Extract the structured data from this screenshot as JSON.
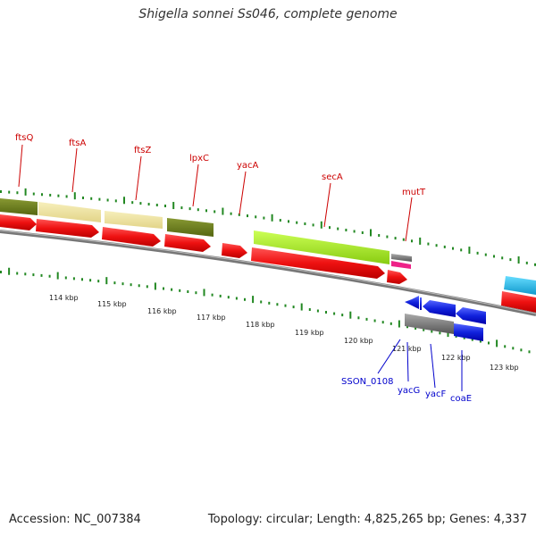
{
  "title": "Shigella sonnei Ss046, complete genome",
  "footer": {
    "accession": "Accession: NC_007384",
    "summary": "Topology: circular; Length: 4,825,265 bp; Genes: 4,337"
  },
  "scale_labels": [
    "114 kbp",
    "115 kbp",
    "116 kbp",
    "117 kbp",
    "118 kbp",
    "119 kbp",
    "120 kbp",
    "121 kbp",
    "122 kbp",
    "123 kbp"
  ],
  "upper_gene_labels": [
    "ftsQ",
    "ftsA",
    "ftsZ",
    "lpxC",
    "yacA",
    "secA",
    "mutT"
  ],
  "lower_gene_labels": [
    "SSON_0108",
    "yacG",
    "yacF",
    "coaE"
  ],
  "colors": {
    "forward_track": "#ee1111",
    "reverse_track": "#1111dd",
    "backbone": "#777777",
    "tick": "#228822",
    "olive": "#667722",
    "khaki": "#eee099",
    "lime": "#aaee22",
    "cyan": "#22bbee",
    "gray": "#888888",
    "magenta": "#ee2288"
  }
}
